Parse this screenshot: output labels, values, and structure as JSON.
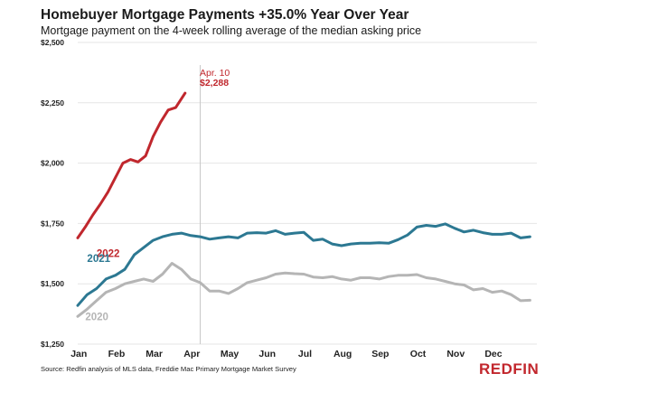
{
  "header": {
    "title": "Homebuyer Mortgage Payments +35.0% Year Over Year",
    "subtitle": "Mortgage payment on the 4-week rolling average of the median asking price"
  },
  "footer": {
    "source": "Source: Redfin analysis of MLS data, Freddie Mac Primary Mortgage Market Survey",
    "logo": "REDFIN"
  },
  "annotation": {
    "date": "Apr. 10",
    "value": "$2,288",
    "color": "#c0272d"
  },
  "chart_data": {
    "type": "line",
    "title": "Homebuyer Mortgage Payments +35.0% Year Over Year",
    "subtitle": "Mortgage payment on the 4-week rolling average of the median asking price",
    "xlabel": "",
    "ylabel": "",
    "ylim": [
      1250,
      2500
    ],
    "xlim": [
      0,
      12
    ],
    "x_unit": "months since Jan 1",
    "y_ticks": [
      {
        "value": 1250,
        "label": "$1,250"
      },
      {
        "value": 1500,
        "label": "$1,500"
      },
      {
        "value": 1750,
        "label": "$1,750"
      },
      {
        "value": 2000,
        "label": "$2,000"
      },
      {
        "value": 2250,
        "label": "$2,250"
      },
      {
        "value": 2500,
        "label": "$2,500"
      }
    ],
    "x_ticks": [
      {
        "value": 0,
        "label": "Jan"
      },
      {
        "value": 1,
        "label": "Feb"
      },
      {
        "value": 2,
        "label": "Mar"
      },
      {
        "value": 3,
        "label": "Apr"
      },
      {
        "value": 4,
        "label": "May"
      },
      {
        "value": 5,
        "label": "Jun"
      },
      {
        "value": 6,
        "label": "Jul"
      },
      {
        "value": 7,
        "label": "Aug"
      },
      {
        "value": 8,
        "label": "Sep"
      },
      {
        "value": 9,
        "label": "Oct"
      },
      {
        "value": 10,
        "label": "Nov"
      },
      {
        "value": 11,
        "label": "Dec"
      }
    ],
    "grid": "horizontal",
    "reference_line_x": 3.25,
    "series": [
      {
        "name": "2022",
        "color": "#c0272d",
        "label_x": 0.5,
        "label_y": 1612,
        "points": [
          [
            0,
            1690
          ],
          [
            0.2,
            1735
          ],
          [
            0.4,
            1785
          ],
          [
            0.6,
            1830
          ],
          [
            0.8,
            1880
          ],
          [
            1.0,
            1940
          ],
          [
            1.2,
            2000
          ],
          [
            1.4,
            2015
          ],
          [
            1.6,
            2005
          ],
          [
            1.8,
            2030
          ],
          [
            2.0,
            2110
          ],
          [
            2.2,
            2170
          ],
          [
            2.4,
            2220
          ],
          [
            2.6,
            2230
          ],
          [
            2.85,
            2290
          ]
        ]
      },
      {
        "name": "2021",
        "color": "#2c7892",
        "label_x": 0.25,
        "label_y": 1590,
        "points": [
          [
            0,
            1410
          ],
          [
            0.25,
            1455
          ],
          [
            0.5,
            1480
          ],
          [
            0.75,
            1520
          ],
          [
            1.0,
            1535
          ],
          [
            1.25,
            1560
          ],
          [
            1.5,
            1620
          ],
          [
            1.75,
            1650
          ],
          [
            2.0,
            1680
          ],
          [
            2.25,
            1695
          ],
          [
            2.5,
            1705
          ],
          [
            2.75,
            1710
          ],
          [
            3.0,
            1700
          ],
          [
            3.25,
            1695
          ],
          [
            3.5,
            1685
          ],
          [
            3.75,
            1690
          ],
          [
            4.0,
            1695
          ],
          [
            4.25,
            1690
          ],
          [
            4.5,
            1710
          ],
          [
            4.75,
            1712
          ],
          [
            5.0,
            1710
          ],
          [
            5.25,
            1720
          ],
          [
            5.5,
            1705
          ],
          [
            5.75,
            1710
          ],
          [
            6.0,
            1713
          ],
          [
            6.25,
            1680
          ],
          [
            6.5,
            1685
          ],
          [
            6.75,
            1665
          ],
          [
            7.0,
            1658
          ],
          [
            7.25,
            1665
          ],
          [
            7.5,
            1668
          ],
          [
            7.75,
            1668
          ],
          [
            8.0,
            1670
          ],
          [
            8.25,
            1668
          ],
          [
            8.5,
            1683
          ],
          [
            8.75,
            1702
          ],
          [
            9.0,
            1735
          ],
          [
            9.25,
            1742
          ],
          [
            9.5,
            1738
          ],
          [
            9.75,
            1748
          ],
          [
            10.0,
            1730
          ],
          [
            10.25,
            1715
          ],
          [
            10.5,
            1722
          ],
          [
            10.75,
            1712
          ],
          [
            11.0,
            1705
          ],
          [
            11.25,
            1705
          ],
          [
            11.5,
            1710
          ],
          [
            11.75,
            1690
          ],
          [
            12.0,
            1695
          ]
        ]
      },
      {
        "name": "2020",
        "color": "#b5b5b5",
        "label_x": 0.2,
        "label_y": 1350,
        "points": [
          [
            0,
            1365
          ],
          [
            0.25,
            1395
          ],
          [
            0.5,
            1430
          ],
          [
            0.75,
            1465
          ],
          [
            1.0,
            1480
          ],
          [
            1.25,
            1500
          ],
          [
            1.5,
            1510
          ],
          [
            1.75,
            1520
          ],
          [
            2.0,
            1510
          ],
          [
            2.25,
            1540
          ],
          [
            2.5,
            1585
          ],
          [
            2.75,
            1560
          ],
          [
            3.0,
            1520
          ],
          [
            3.25,
            1505
          ],
          [
            3.5,
            1470
          ],
          [
            3.75,
            1470
          ],
          [
            4.0,
            1460
          ],
          [
            4.25,
            1480
          ],
          [
            4.5,
            1505
          ],
          [
            4.75,
            1515
          ],
          [
            5.0,
            1525
          ],
          [
            5.25,
            1540
          ],
          [
            5.5,
            1545
          ],
          [
            5.75,
            1542
          ],
          [
            6.0,
            1540
          ],
          [
            6.25,
            1528
          ],
          [
            6.5,
            1525
          ],
          [
            6.75,
            1530
          ],
          [
            7.0,
            1520
          ],
          [
            7.25,
            1515
          ],
          [
            7.5,
            1525
          ],
          [
            7.75,
            1525
          ],
          [
            8.0,
            1520
          ],
          [
            8.25,
            1530
          ],
          [
            8.5,
            1535
          ],
          [
            8.75,
            1535
          ],
          [
            9.0,
            1538
          ],
          [
            9.25,
            1525
          ],
          [
            9.5,
            1520
          ],
          [
            9.75,
            1510
          ],
          [
            10.0,
            1500
          ],
          [
            10.25,
            1495
          ],
          [
            10.5,
            1475
          ],
          [
            10.75,
            1480
          ],
          [
            11.0,
            1465
          ],
          [
            11.25,
            1470
          ],
          [
            11.5,
            1455
          ],
          [
            11.75,
            1430
          ],
          [
            12.0,
            1432
          ]
        ]
      }
    ]
  }
}
